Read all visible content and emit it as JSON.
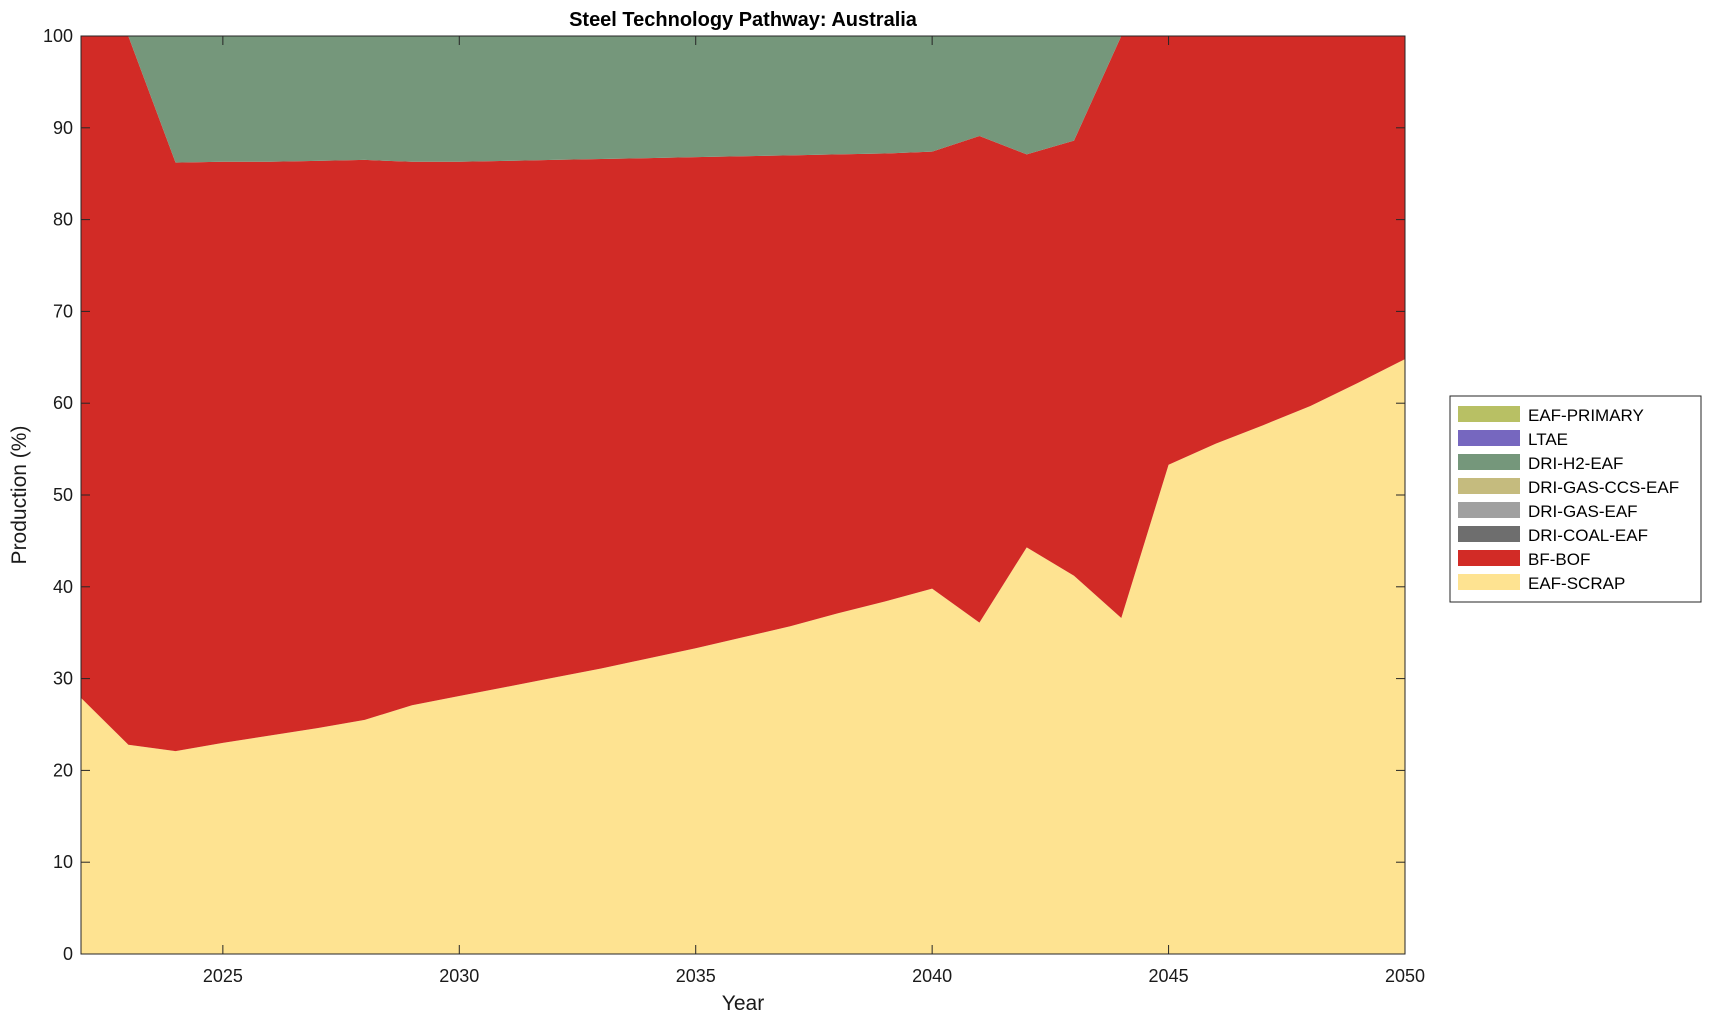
{
  "chart_data": {
    "type": "area",
    "stacked": true,
    "title": "Steel Technology Pathway: Australia",
    "xlabel": "Year",
    "ylabel": "Production (%)",
    "xlim": [
      2022,
      2050
    ],
    "ylim": [
      0,
      100
    ],
    "xticks": [
      2025,
      2030,
      2035,
      2040,
      2045,
      2050
    ],
    "yticks": [
      0,
      10,
      20,
      30,
      40,
      50,
      60,
      70,
      80,
      90,
      100
    ],
    "grid": false,
    "legend_position": "right",
    "x": [
      2022,
      2023,
      2024,
      2025,
      2026,
      2027,
      2028,
      2029,
      2030,
      2031,
      2032,
      2033,
      2034,
      2035,
      2036,
      2037,
      2038,
      2039,
      2040,
      2041,
      2042,
      2043,
      2044,
      2045,
      2046,
      2047,
      2048,
      2049,
      2050
    ],
    "series": [
      {
        "name": "EAF-SCRAP",
        "color": "#fee391",
        "values": [
          27.9,
          22.8,
          22.1,
          23.0,
          23.8,
          24.6,
          25.5,
          27.1,
          28.1,
          29.1,
          30.1,
          31.1,
          32.2,
          33.3,
          34.5,
          35.7,
          37.1,
          38.4,
          39.8,
          36.1,
          44.3,
          41.2,
          36.6,
          53.3,
          55.6,
          57.6,
          59.7,
          62.2,
          64.8
        ]
      },
      {
        "name": "BF-BOF",
        "color": "#d22b26",
        "values": [
          72.1,
          77.2,
          64.1,
          63.3,
          62.5,
          61.8,
          61.0,
          59.2,
          58.2,
          57.3,
          56.4,
          55.5,
          54.5,
          53.5,
          52.4,
          51.3,
          50.0,
          48.8,
          47.6,
          53.0,
          42.8,
          47.4,
          63.4,
          46.7,
          44.4,
          42.4,
          40.3,
          37.8,
          35.2
        ]
      },
      {
        "name": "DRI-COAL-EAF",
        "color": "#6e6e6e",
        "values": [
          0,
          0,
          0,
          0,
          0,
          0,
          0,
          0,
          0,
          0,
          0,
          0,
          0,
          0,
          0,
          0,
          0,
          0,
          0,
          0,
          0,
          0,
          0,
          0,
          0,
          0,
          0,
          0,
          0
        ]
      },
      {
        "name": "DRI-GAS-EAF",
        "color": "#a0a0a0",
        "values": [
          0,
          0,
          0,
          0,
          0,
          0,
          0,
          0,
          0,
          0,
          0,
          0,
          0,
          0,
          0,
          0,
          0,
          0,
          0,
          0,
          0,
          0,
          0,
          0,
          0,
          0,
          0,
          0,
          0
        ]
      },
      {
        "name": "DRI-GAS-CCS-EAF",
        "color": "#c5bb7e",
        "values": [
          0,
          0,
          0,
          0,
          0,
          0,
          0,
          0,
          0,
          0,
          0,
          0,
          0,
          0,
          0,
          0,
          0,
          0,
          0,
          0,
          0,
          0,
          0,
          0,
          0,
          0,
          0,
          0,
          0
        ]
      },
      {
        "name": "DRI-H2-EAF",
        "color": "#75977b",
        "values": [
          0,
          0,
          13.8,
          13.7,
          13.7,
          13.6,
          13.5,
          13.7,
          13.7,
          13.6,
          13.5,
          13.4,
          13.3,
          13.2,
          13.1,
          13.0,
          12.9,
          12.8,
          12.6,
          10.9,
          12.9,
          11.4,
          0,
          0,
          0,
          0,
          0,
          0,
          0
        ]
      },
      {
        "name": "LTAE",
        "color": "#7667bf",
        "values": [
          0,
          0,
          0,
          0,
          0,
          0,
          0,
          0,
          0,
          0,
          0,
          0,
          0,
          0,
          0,
          0,
          0,
          0,
          0,
          0,
          0,
          0,
          0,
          0,
          0,
          0,
          0,
          0,
          0
        ]
      },
      {
        "name": "EAF-PRIMARY",
        "color": "#b8c064",
        "values": [
          0,
          0,
          0,
          0,
          0,
          0,
          0,
          0,
          0,
          0,
          0,
          0,
          0,
          0,
          0,
          0,
          0,
          0,
          0,
          0,
          0,
          0,
          0,
          0,
          0,
          0,
          0,
          0,
          0
        ]
      }
    ],
    "legend_order": [
      "EAF-PRIMARY",
      "LTAE",
      "DRI-H2-EAF",
      "DRI-GAS-CCS-EAF",
      "DRI-GAS-EAF",
      "DRI-COAL-EAF",
      "BF-BOF",
      "EAF-SCRAP"
    ]
  }
}
